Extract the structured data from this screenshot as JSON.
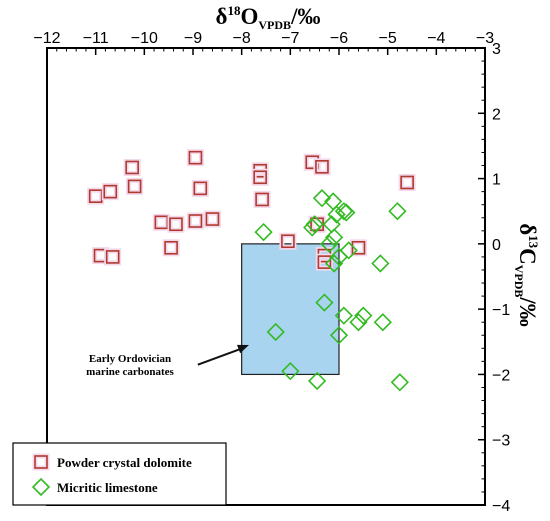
{
  "chart_data": {
    "type": "scatter",
    "title": "",
    "xlabel": {
      "prefix": "δ",
      "sup": "18",
      "main": "O",
      "sub": "VPDB",
      "suffix": "/‰"
    },
    "ylabel": {
      "prefix": "δ",
      "sup": "13",
      "main": "C",
      "sub": "VPDB",
      "suffix": "/‰"
    },
    "xlim": [
      -12,
      -3
    ],
    "ylim": [
      -4,
      3
    ],
    "x_ticks": [
      -12,
      -11,
      -10,
      -9,
      -8,
      -7,
      -6,
      -5,
      -4,
      -3
    ],
    "y_ticks": [
      -4,
      -3,
      -2,
      -1,
      0,
      1,
      2,
      3
    ],
    "x_axis_position": "top",
    "y_axis_position": "right",
    "grid": false,
    "legend_position": "bottom-left",
    "colors": {
      "dolomite": "#b03a2e",
      "limestone": "#33bb22",
      "box_fill": "#a8d4f0",
      "box_stroke": "#222222",
      "marker_halo": "#f4d8ec"
    },
    "box": {
      "x0": -8,
      "x1": -6,
      "y0": -2,
      "y1": 0
    },
    "annotation": {
      "lines": [
        "Early Ordovician",
        "marine carbonates"
      ],
      "arrow_from": [
        -8.9,
        -1.85
      ],
      "arrow_to": [
        -7.85,
        -1.55
      ]
    },
    "series": [
      {
        "name": "Powder crystal dolomite",
        "marker": "square",
        "points": [
          {
            "x": -11.0,
            "y": 0.73
          },
          {
            "x": -10.7,
            "y": 0.8
          },
          {
            "x": -10.25,
            "y": 1.17
          },
          {
            "x": -10.2,
            "y": 0.88
          },
          {
            "x": -8.95,
            "y": 1.32
          },
          {
            "x": -8.85,
            "y": 0.85
          },
          {
            "x": -7.62,
            "y": 1.12
          },
          {
            "x": -7.62,
            "y": 1.02
          },
          {
            "x": -7.58,
            "y": 0.68
          },
          {
            "x": -6.55,
            "y": 1.25
          },
          {
            "x": -6.35,
            "y": 1.18
          },
          {
            "x": -4.6,
            "y": 0.94
          },
          {
            "x": -9.65,
            "y": 0.33
          },
          {
            "x": -9.35,
            "y": 0.3
          },
          {
            "x": -8.95,
            "y": 0.35
          },
          {
            "x": -8.6,
            "y": 0.38
          },
          {
            "x": -10.9,
            "y": -0.18
          },
          {
            "x": -10.65,
            "y": -0.2
          },
          {
            "x": -9.45,
            "y": -0.06
          },
          {
            "x": -7.05,
            "y": 0.04
          },
          {
            "x": -6.45,
            "y": 0.3
          },
          {
            "x": -6.3,
            "y": -0.18
          },
          {
            "x": -6.3,
            "y": -0.28
          },
          {
            "x": -5.6,
            "y": -0.06
          }
        ]
      },
      {
        "name": "Micritic limestone",
        "marker": "diamond",
        "points": [
          {
            "x": -6.35,
            "y": 0.7
          },
          {
            "x": -6.12,
            "y": 0.65
          },
          {
            "x": -6.05,
            "y": 0.45
          },
          {
            "x": -5.9,
            "y": 0.5
          },
          {
            "x": -5.85,
            "y": 0.48
          },
          {
            "x": -6.15,
            "y": 0.3
          },
          {
            "x": -6.1,
            "y": 0.1
          },
          {
            "x": -6.5,
            "y": 0.3
          },
          {
            "x": -6.55,
            "y": 0.25
          },
          {
            "x": -6.2,
            "y": 0.0
          },
          {
            "x": -6.0,
            "y": -0.2
          },
          {
            "x": -6.1,
            "y": -0.3
          },
          {
            "x": -5.8,
            "y": -0.1
          },
          {
            "x": -5.15,
            "y": -0.3
          },
          {
            "x": -4.8,
            "y": 0.5
          },
          {
            "x": -7.55,
            "y": 0.18
          },
          {
            "x": -6.3,
            "y": -0.9
          },
          {
            "x": -5.9,
            "y": -1.1
          },
          {
            "x": -5.6,
            "y": -1.2
          },
          {
            "x": -5.5,
            "y": -1.1
          },
          {
            "x": -5.1,
            "y": -1.2
          },
          {
            "x": -6.0,
            "y": -1.4
          },
          {
            "x": -7.3,
            "y": -1.35
          },
          {
            "x": -7.0,
            "y": -1.95
          },
          {
            "x": -6.45,
            "y": -2.1
          },
          {
            "x": -4.75,
            "y": -2.12
          }
        ]
      }
    ]
  }
}
